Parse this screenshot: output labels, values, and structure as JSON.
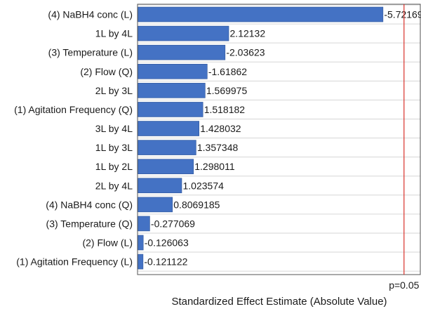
{
  "chart_data": {
    "type": "bar",
    "orientation": "horizontal",
    "title": "",
    "xlabel": "Standardized Effect Estimate (Absolute Value)",
    "ylabel": "",
    "xlim": [
      0,
      6.6
    ],
    "grid": true,
    "bar_color": "#4472c4",
    "reference_line": {
      "label": "p=0.05",
      "value": 6.22,
      "color": "#d9302a"
    },
    "bars": [
      {
        "category": "(4) NaBH4 conc (L)",
        "value": 5.72169,
        "label": "-5.72169"
      },
      {
        "category": "1L by 4L",
        "value": 2.12132,
        "label": "2.12132"
      },
      {
        "category": "(3) Temperature (L)",
        "value": 2.03623,
        "label": "-2.03623"
      },
      {
        "category": "(2) Flow (Q)",
        "value": 1.61862,
        "label": "-1.61862"
      },
      {
        "category": "2L by 3L",
        "value": 1.569975,
        "label": "1.569975"
      },
      {
        "category": "(1) Agitation Frequency (Q)",
        "value": 1.518182,
        "label": "1.518182"
      },
      {
        "category": "3L by 4L",
        "value": 1.428032,
        "label": "1.428032"
      },
      {
        "category": "1L by 3L",
        "value": 1.357348,
        "label": "1.357348"
      },
      {
        "category": "1L by 2L",
        "value": 1.298011,
        "label": "1.298011"
      },
      {
        "category": "2L by 4L",
        "value": 1.023574,
        "label": "1.023574"
      },
      {
        "category": "(4) NaBH4 conc (Q)",
        "value": 0.8069185,
        "label": "0.8069185"
      },
      {
        "category": "(3) Temperature (Q)",
        "value": 0.277069,
        "label": "-0.277069"
      },
      {
        "category": "(2) Flow (L)",
        "value": 0.126063,
        "label": "-0.126063"
      },
      {
        "category": "(1) Agitation Frequency (L)",
        "value": 0.121122,
        "label": "-0.121122"
      }
    ]
  }
}
